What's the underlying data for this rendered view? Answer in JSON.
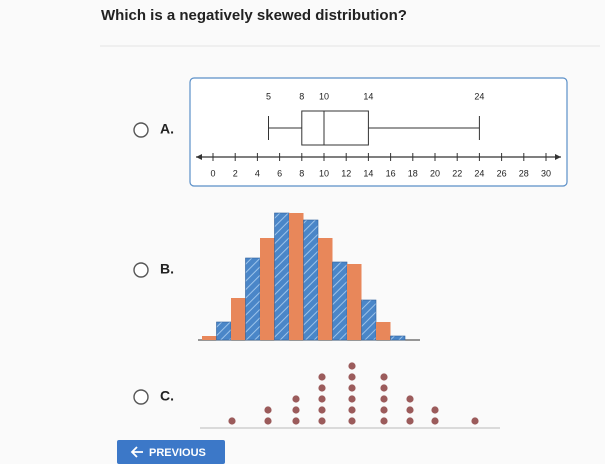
{
  "question": "Which is a negatively skewed distribution?",
  "options": [
    {
      "label": "A.",
      "box_plot": {
        "min": 5,
        "q1": 8,
        "median": 10,
        "q3": 14,
        "max": 24,
        "xlim": [
          0,
          30
        ],
        "xticks": [
          0,
          2,
          4,
          6,
          8,
          10,
          12,
          14,
          16,
          18,
          20,
          22,
          24,
          26,
          28,
          30
        ]
      }
    },
    {
      "label": "B.",
      "histogram": {
        "values": [
          4,
          18,
          42,
          82,
          102,
          127,
          127,
          120,
          102,
          78,
          76,
          40,
          18,
          4
        ],
        "colors": [
          "#e8875a",
          "#4a86c8"
        ]
      }
    },
    {
      "label": "C.",
      "dot_plot": {
        "counts": [
          1,
          2,
          3,
          5,
          6,
          5,
          3,
          2,
          1
        ],
        "color": "#9b5b5b"
      }
    }
  ],
  "button": "PREVIOUS"
}
